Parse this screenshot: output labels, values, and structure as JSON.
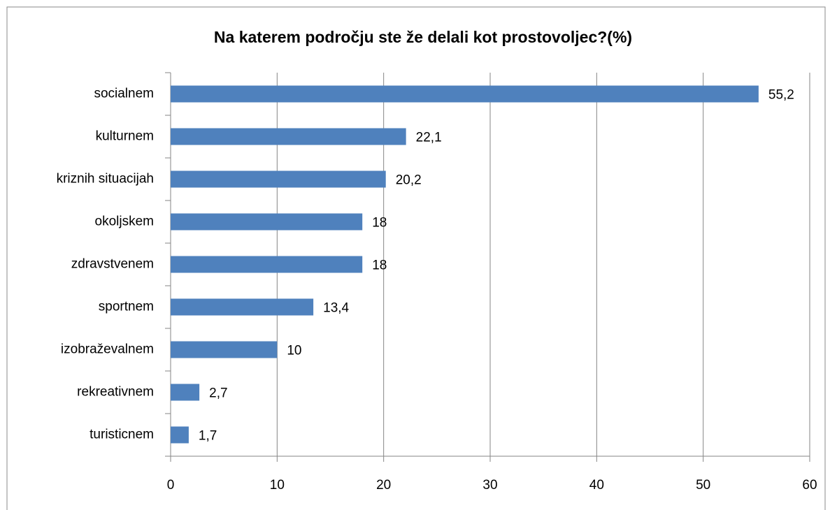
{
  "chart_data": {
    "type": "bar",
    "orientation": "horizontal",
    "title": "Na katerem področju ste že delali kot prostovoljec?(%)",
    "categories": [
      "socialnem",
      "kulturnem",
      "kriznih situacijah",
      "okoljskem",
      "zdravstvenem",
      "sportnem",
      "izobraževalnem",
      "rekreativnem",
      "turisticnem"
    ],
    "values": [
      55.2,
      22.1,
      20.2,
      18,
      18,
      13.4,
      10,
      2.7,
      1.7
    ],
    "value_labels": [
      "55,2",
      "22,1",
      "20,2",
      "18",
      "18",
      "13,4",
      "10",
      "2,7",
      "1,7"
    ],
    "color": "#4f81bd",
    "xlim": [
      0,
      60
    ],
    "xticks": [
      0,
      10,
      20,
      30,
      40,
      50,
      60
    ],
    "grid": true
  }
}
